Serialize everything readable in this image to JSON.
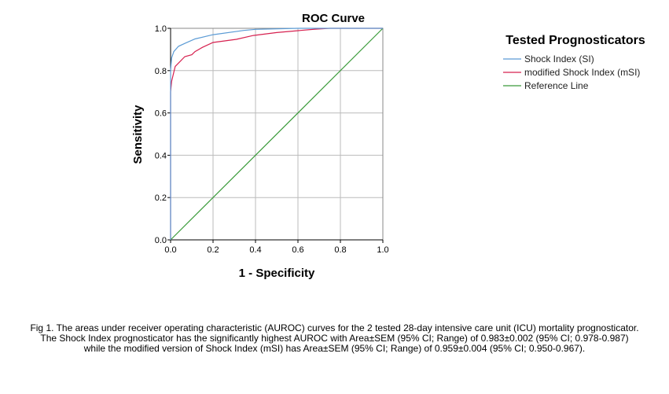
{
  "chart_data": {
    "type": "line",
    "title": "ROC Curve",
    "xlabel": "1 - Specificity",
    "ylabel": "Sensitivity",
    "xlim": [
      0,
      1
    ],
    "ylim": [
      0,
      1
    ],
    "xticks": [
      "0.0",
      "0.2",
      "0.4",
      "0.6",
      "0.8",
      "1.0"
    ],
    "yticks": [
      "0.0",
      "0.2",
      "0.4",
      "0.6",
      "0.8",
      "1.0"
    ],
    "grid": true,
    "legend": {
      "title": "Tested Prognosticators",
      "placement": "right"
    },
    "series": [
      {
        "name": "Shock Index (SI)",
        "color": "#5b9bd5",
        "x": [
          0,
          0,
          0.005,
          0.015,
          0.037,
          0.07,
          0.115,
          0.2,
          0.345,
          0.4,
          0.6,
          1.0
        ],
        "y": [
          0,
          0.8,
          0.86,
          0.89,
          0.915,
          0.93,
          0.95,
          0.97,
          0.99,
          0.995,
          1.0,
          1.0
        ]
      },
      {
        "name": "modified Shock Index (mSI)",
        "color": "#d6204f",
        "x": [
          0,
          0,
          0.005,
          0.022,
          0.067,
          0.1,
          0.115,
          0.15,
          0.2,
          0.31,
          0.39,
          0.5,
          0.68,
          0.75,
          1.0
        ],
        "y": [
          0,
          0.7,
          0.75,
          0.82,
          0.866,
          0.875,
          0.89,
          0.91,
          0.933,
          0.948,
          0.966,
          0.98,
          0.996,
          1.0,
          1.0
        ]
      },
      {
        "name": "Reference Line",
        "color": "#3a9b3a",
        "x": [
          0,
          1
        ],
        "y": [
          0,
          1
        ]
      }
    ]
  },
  "caption": [
    "Fig 1. The areas under receiver operating characteristic (AUROC) curves for the 2 tested 28-day intensive care unit (ICU) mortality prognosticator.",
    "The Shock Index prognosticator has the significantly highest AUROC with Area±SEM (95% CI; Range) of 0.983±0.002 (95% CI; 0.978-0.987)",
    "while the modified version of Shock Index (mSI) has Area±SEM (95% CI; Range) of 0.959±0.004 (95% CI; 0.950-0.967)."
  ]
}
